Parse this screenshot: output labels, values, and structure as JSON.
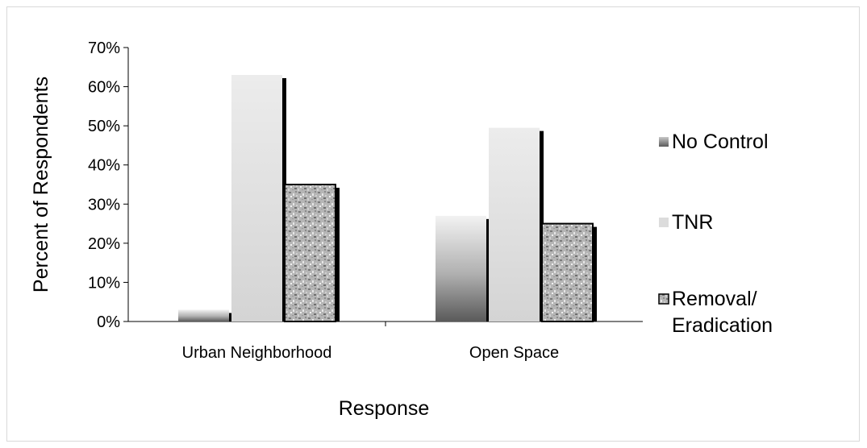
{
  "chart_data": {
    "type": "bar",
    "title": "",
    "xlabel": "Response",
    "ylabel": "Percent of Respondents",
    "categories": [
      "Urban Neighborhood",
      "Open Space"
    ],
    "series": [
      {
        "name": "No Control",
        "values": [
          3,
          27
        ],
        "color": "#808080"
      },
      {
        "name": "TNR",
        "values": [
          63,
          49.5
        ],
        "color": "#d9d9d9"
      },
      {
        "name": "Removal/ Eradication",
        "values": [
          35,
          25
        ],
        "color": "#a6a6a6"
      }
    ],
    "ylim": [
      0,
      70
    ],
    "y_ticks": [
      "0%",
      "10%",
      "20%",
      "30%",
      "40%",
      "50%",
      "60%",
      "70%"
    ],
    "grid": false,
    "legend": "right"
  }
}
